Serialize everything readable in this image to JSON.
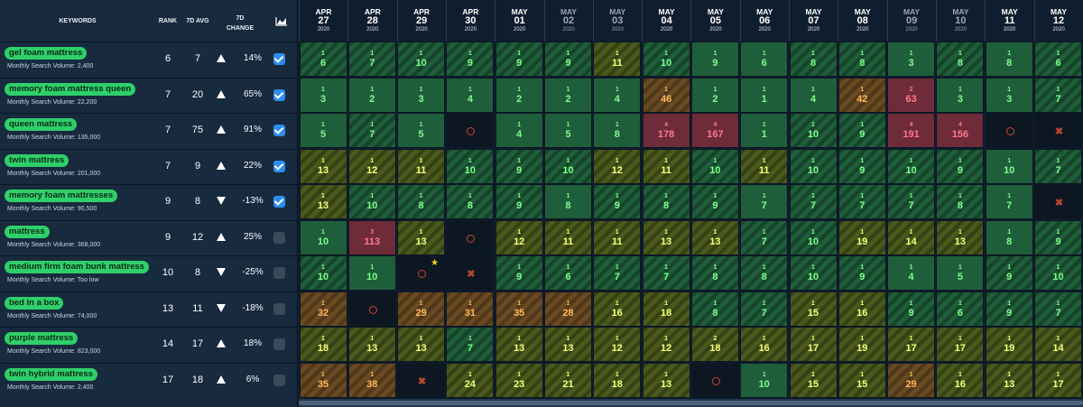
{
  "header": {
    "keywords_label": "KEYWORDS",
    "rank_label": "RANK",
    "avg_label": "7D AVG",
    "change_label_1": "7D",
    "change_label_2": "CHANGE",
    "chart_icon": "area-chart-icon"
  },
  "dates": [
    {
      "month": "APR",
      "day": "27",
      "year": "2020"
    },
    {
      "month": "APR",
      "day": "28",
      "year": "2020"
    },
    {
      "month": "APR",
      "day": "29",
      "year": "2020"
    },
    {
      "month": "APR",
      "day": "30",
      "year": "2020"
    },
    {
      "month": "MAY",
      "day": "01",
      "year": "2020"
    },
    {
      "month": "MAY",
      "day": "02",
      "year": "2020"
    },
    {
      "month": "MAY",
      "day": "03",
      "year": "2020"
    },
    {
      "month": "MAY",
      "day": "04",
      "year": "2020"
    },
    {
      "month": "MAY",
      "day": "05",
      "year": "2020"
    },
    {
      "month": "MAY",
      "day": "06",
      "year": "2020"
    },
    {
      "month": "MAY",
      "day": "07",
      "year": "2020"
    },
    {
      "month": "MAY",
      "day": "08",
      "year": "2020"
    },
    {
      "month": "MAY",
      "day": "09",
      "year": "2020"
    },
    {
      "month": "MAY",
      "day": "10",
      "year": "2020"
    },
    {
      "month": "MAY",
      "day": "11",
      "year": "2020"
    },
    {
      "month": "MAY",
      "day": "12",
      "year": "2020"
    }
  ],
  "dim_date_indexes": [
    5,
    6,
    12,
    13
  ],
  "colors": {
    "green": "#2fcf6a",
    "checkbox_on": "#2c8ef0",
    "red_cell": "#6e2b3a",
    "orange_cell": "#6a4a22"
  },
  "rows": [
    {
      "keyword": "gel foam mattress",
      "volume": "Monthly Search Volume: 2,400",
      "rank": "6",
      "avg": "7",
      "dir": "up",
      "change": "14%",
      "checked": true,
      "cells": [
        [
          "g1",
          "1",
          "6"
        ],
        [
          "g1",
          "1",
          "7"
        ],
        [
          "g1",
          "1",
          "10"
        ],
        [
          "g1",
          "1",
          "9"
        ],
        [
          "g1",
          "1",
          "9"
        ],
        [
          "g1",
          "1",
          "9"
        ],
        [
          "y1",
          "1",
          "11"
        ],
        [
          "g1",
          "1",
          "10"
        ],
        [
          "g",
          "1",
          "9"
        ],
        [
          "g",
          "1",
          "6"
        ],
        [
          "g1",
          "1",
          "8"
        ],
        [
          "g1",
          "1",
          "8"
        ],
        [
          "g",
          "1",
          "3"
        ],
        [
          "g1",
          "1",
          "8"
        ],
        [
          "g",
          "1",
          "8"
        ],
        [
          "g1",
          "1",
          "6"
        ]
      ]
    },
    {
      "keyword": "memory foam mattress queen",
      "volume": "Monthly Search Volume: 22,200",
      "rank": "7",
      "avg": "20",
      "dir": "up",
      "change": "65%",
      "checked": true,
      "cells": [
        [
          "g",
          "1",
          "3"
        ],
        [
          "g",
          "1",
          "2"
        ],
        [
          "g",
          "1",
          "3"
        ],
        [
          "g",
          "1",
          "4"
        ],
        [
          "g",
          "1",
          "2"
        ],
        [
          "g",
          "1",
          "2"
        ],
        [
          "g",
          "1",
          "4"
        ],
        [
          "o1",
          "1",
          "46"
        ],
        [
          "g",
          "1",
          "2"
        ],
        [
          "g",
          "1",
          "1"
        ],
        [
          "g",
          "1",
          "4"
        ],
        [
          "o1",
          "1",
          "42"
        ],
        [
          "r1",
          "2",
          "63"
        ],
        [
          "g",
          "1",
          "3"
        ],
        [
          "g",
          "1",
          "3"
        ],
        [
          "g1",
          "1",
          "7"
        ]
      ]
    },
    {
      "keyword": "queen mattress",
      "volume": "Monthly Search Volume: 135,000",
      "rank": "7",
      "avg": "75",
      "dir": "up",
      "change": "91%",
      "checked": true,
      "cells": [
        [
          "g",
          "1",
          "5"
        ],
        [
          "g1",
          "1",
          "7"
        ],
        [
          "g",
          "1",
          "5"
        ],
        [
          "ring",
          "",
          ""
        ],
        [
          "g",
          "1",
          "4"
        ],
        [
          "g",
          "1",
          "5"
        ],
        [
          "g",
          "1",
          "8"
        ],
        [
          "r1",
          "4",
          "178"
        ],
        [
          "r1",
          "4",
          "167"
        ],
        [
          "g",
          "1",
          "1"
        ],
        [
          "g1",
          "1",
          "10"
        ],
        [
          "g1",
          "1",
          "9"
        ],
        [
          "r1",
          "4",
          "191"
        ],
        [
          "r1",
          "4",
          "156"
        ],
        [
          "ring",
          "",
          ""
        ],
        [
          "x",
          "",
          ""
        ]
      ]
    },
    {
      "keyword": "twin mattress",
      "volume": "Monthly Search Volume: 201,000",
      "rank": "7",
      "avg": "9",
      "dir": "up",
      "change": "22%",
      "checked": true,
      "cells": [
        [
          "y1",
          "1",
          "13"
        ],
        [
          "y1",
          "1",
          "12"
        ],
        [
          "y1",
          "1",
          "11"
        ],
        [
          "g1",
          "1",
          "10"
        ],
        [
          "g1",
          "1",
          "9"
        ],
        [
          "g1",
          "1",
          "10"
        ],
        [
          "y1",
          "1",
          "12"
        ],
        [
          "y1",
          "1",
          "11"
        ],
        [
          "g1",
          "1",
          "10"
        ],
        [
          "y1",
          "1",
          "11"
        ],
        [
          "g1",
          "1",
          "10"
        ],
        [
          "g1",
          "1",
          "9"
        ],
        [
          "g1",
          "1",
          "10"
        ],
        [
          "g1",
          "1",
          "9"
        ],
        [
          "g",
          "1",
          "10"
        ],
        [
          "g1",
          "1",
          "7"
        ]
      ]
    },
    {
      "keyword": "memory foam mattresses",
      "volume": "Monthly Search Volume: 90,500",
      "rank": "9",
      "avg": "8",
      "dir": "down",
      "change": "-13%",
      "checked": true,
      "cells": [
        [
          "y1",
          "1",
          "13"
        ],
        [
          "g1",
          "1",
          "10"
        ],
        [
          "g1",
          "1",
          "8"
        ],
        [
          "g1",
          "1",
          "8"
        ],
        [
          "g1",
          "1",
          "9"
        ],
        [
          "g",
          "1",
          "8"
        ],
        [
          "g1",
          "1",
          "9"
        ],
        [
          "g1",
          "1",
          "8"
        ],
        [
          "g1",
          "1",
          "9"
        ],
        [
          "g",
          "1",
          "7"
        ],
        [
          "g1",
          "1",
          "7"
        ],
        [
          "g1",
          "1",
          "7"
        ],
        [
          "g1",
          "1",
          "7"
        ],
        [
          "g1",
          "1",
          "8"
        ],
        [
          "g",
          "1",
          "7"
        ],
        [
          "x",
          "",
          ""
        ]
      ]
    },
    {
      "keyword": "mattress",
      "volume": "Monthly Search Volume: 368,000",
      "rank": "9",
      "avg": "12",
      "dir": "up",
      "change": "25%",
      "checked": false,
      "cells": [
        [
          "g",
          "1",
          "10"
        ],
        [
          "r1",
          "3",
          "113"
        ],
        [
          "y1",
          "1",
          "13"
        ],
        [
          "ring",
          "",
          ""
        ],
        [
          "y1",
          "1",
          "12"
        ],
        [
          "y1",
          "1",
          "11"
        ],
        [
          "y1",
          "1",
          "11"
        ],
        [
          "y1",
          "1",
          "13"
        ],
        [
          "y1",
          "1",
          "13"
        ],
        [
          "g1",
          "1",
          "7"
        ],
        [
          "g1",
          "1",
          "10"
        ],
        [
          "y1",
          "1",
          "19"
        ],
        [
          "y1",
          "1",
          "14"
        ],
        [
          "y1",
          "1",
          "13"
        ],
        [
          "g",
          "1",
          "8"
        ],
        [
          "g1",
          "1",
          "9"
        ]
      ]
    },
    {
      "keyword": "medium firm foam bunk mattress",
      "volume": "Monthly Search Volume: Too low",
      "rank": "10",
      "avg": "8",
      "dir": "down",
      "change": "-25%",
      "checked": false,
      "cells": [
        [
          "g1",
          "1",
          "10"
        ],
        [
          "g",
          "1",
          "10"
        ],
        [
          "ringstar",
          "",
          ""
        ],
        [
          "x",
          "",
          ""
        ],
        [
          "g1",
          "1",
          "9"
        ],
        [
          "g1",
          "1",
          "6"
        ],
        [
          "g1",
          "1",
          "7"
        ],
        [
          "g1",
          "1",
          "7"
        ],
        [
          "g1",
          "1",
          "8"
        ],
        [
          "g1",
          "1",
          "8"
        ],
        [
          "g1",
          "1",
          "10"
        ],
        [
          "g1",
          "1",
          "9"
        ],
        [
          "g",
          "1",
          "4"
        ],
        [
          "g",
          "1",
          "5"
        ],
        [
          "g1",
          "1",
          "9"
        ],
        [
          "g1",
          "1",
          "10"
        ]
      ]
    },
    {
      "keyword": "bed in a box",
      "volume": "Monthly Search Volume: 74,000",
      "rank": "13",
      "avg": "11",
      "dir": "down",
      "change": "-18%",
      "checked": false,
      "cells": [
        [
          "o1",
          "1",
          "32"
        ],
        [
          "ring",
          "",
          ""
        ],
        [
          "o1",
          "1",
          "29"
        ],
        [
          "o1",
          "1",
          "31"
        ],
        [
          "o1",
          "1",
          "35"
        ],
        [
          "o1",
          "1",
          "28"
        ],
        [
          "y1",
          "1",
          "16"
        ],
        [
          "y1",
          "1",
          "18"
        ],
        [
          "g1",
          "1",
          "8"
        ],
        [
          "g1",
          "1",
          "7"
        ],
        [
          "y1",
          "1",
          "15"
        ],
        [
          "y1",
          "1",
          "16"
        ],
        [
          "g1",
          "1",
          "9"
        ],
        [
          "g1",
          "1",
          "6"
        ],
        [
          "g1",
          "1",
          "9"
        ],
        [
          "g1",
          "1",
          "7"
        ]
      ]
    },
    {
      "keyword": "purple mattress",
      "volume": "Monthly Search Volume: 823,000",
      "rank": "14",
      "avg": "17",
      "dir": "up",
      "change": "18%",
      "checked": false,
      "cells": [
        [
          "y1",
          "1",
          "18"
        ],
        [
          "y1",
          "1",
          "13"
        ],
        [
          "y1",
          "1",
          "13"
        ],
        [
          "g1",
          "1",
          "7"
        ],
        [
          "y1",
          "1",
          "13"
        ],
        [
          "y1",
          "1",
          "13"
        ],
        [
          "y1",
          "1",
          "12"
        ],
        [
          "y1",
          "1",
          "12"
        ],
        [
          "y1",
          "2",
          "18"
        ],
        [
          "y1",
          "1",
          "16"
        ],
        [
          "y1",
          "1",
          "17"
        ],
        [
          "y1",
          "1",
          "19"
        ],
        [
          "y1",
          "1",
          "17"
        ],
        [
          "y1",
          "1",
          "17"
        ],
        [
          "y1",
          "1",
          "19"
        ],
        [
          "y1",
          "1",
          "14"
        ]
      ]
    },
    {
      "keyword": "twin hybrid mattress",
      "volume": "Monthly Search Volume: 2,400",
      "rank": "17",
      "avg": "18",
      "dir": "up",
      "change": "6%",
      "checked": false,
      "cells": [
        [
          "o1",
          "1",
          "35"
        ],
        [
          "o1",
          "1",
          "38"
        ],
        [
          "x",
          "",
          ""
        ],
        [
          "y1",
          "1",
          "24"
        ],
        [
          "y1",
          "1",
          "23"
        ],
        [
          "y1",
          "1",
          "21"
        ],
        [
          "y1",
          "1",
          "18"
        ],
        [
          "y1",
          "1",
          "13"
        ],
        [
          "ring",
          "",
          ""
        ],
        [
          "g",
          "1",
          "10"
        ],
        [
          "y1",
          "1",
          "15"
        ],
        [
          "y1",
          "1",
          "15"
        ],
        [
          "o1",
          "1",
          "29"
        ],
        [
          "y1",
          "1",
          "16"
        ],
        [
          "y1",
          "1",
          "13"
        ],
        [
          "y1",
          "1",
          "17"
        ]
      ]
    }
  ]
}
